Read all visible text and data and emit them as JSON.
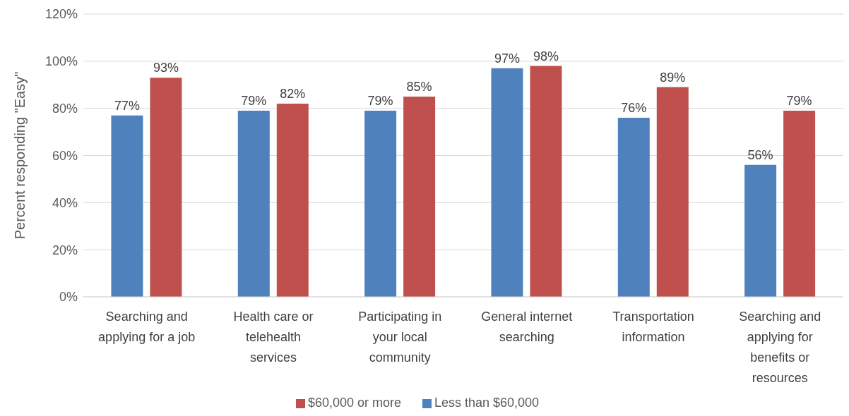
{
  "chart_data": {
    "type": "bar",
    "ylabel": "Percent responding \"Easy\"",
    "categories": [
      "Searching and applying for a job",
      "Health care or telehealth services",
      "Participating in your local community",
      "General internet searching",
      "Transportation information",
      "Searching and applying for benefits or resources"
    ],
    "series": [
      {
        "name": "Less than $60,000",
        "color": "#4f81bd",
        "values": [
          77,
          79,
          79,
          97,
          76,
          56
        ],
        "value_labels": [
          "77%",
          "79%",
          "79%",
          "97%",
          "76%",
          "56%"
        ]
      },
      {
        "name": "$60,000 or more",
        "color": "#c0504d",
        "values": [
          93,
          82,
          85,
          98,
          89,
          79
        ],
        "value_labels": [
          "93%",
          "82%",
          "85%",
          "98%",
          "89%",
          "79%"
        ]
      }
    ],
    "ylim": [
      0,
      120
    ],
    "yticks": [
      {
        "value": 0,
        "label": "0%"
      },
      {
        "value": 20,
        "label": "20%"
      },
      {
        "value": 40,
        "label": "40%"
      },
      {
        "value": 60,
        "label": "60%"
      },
      {
        "value": 80,
        "label": "80%"
      },
      {
        "value": 100,
        "label": "100%"
      },
      {
        "value": 120,
        "label": "120%"
      }
    ],
    "grid": "y",
    "legend": "bottom"
  }
}
